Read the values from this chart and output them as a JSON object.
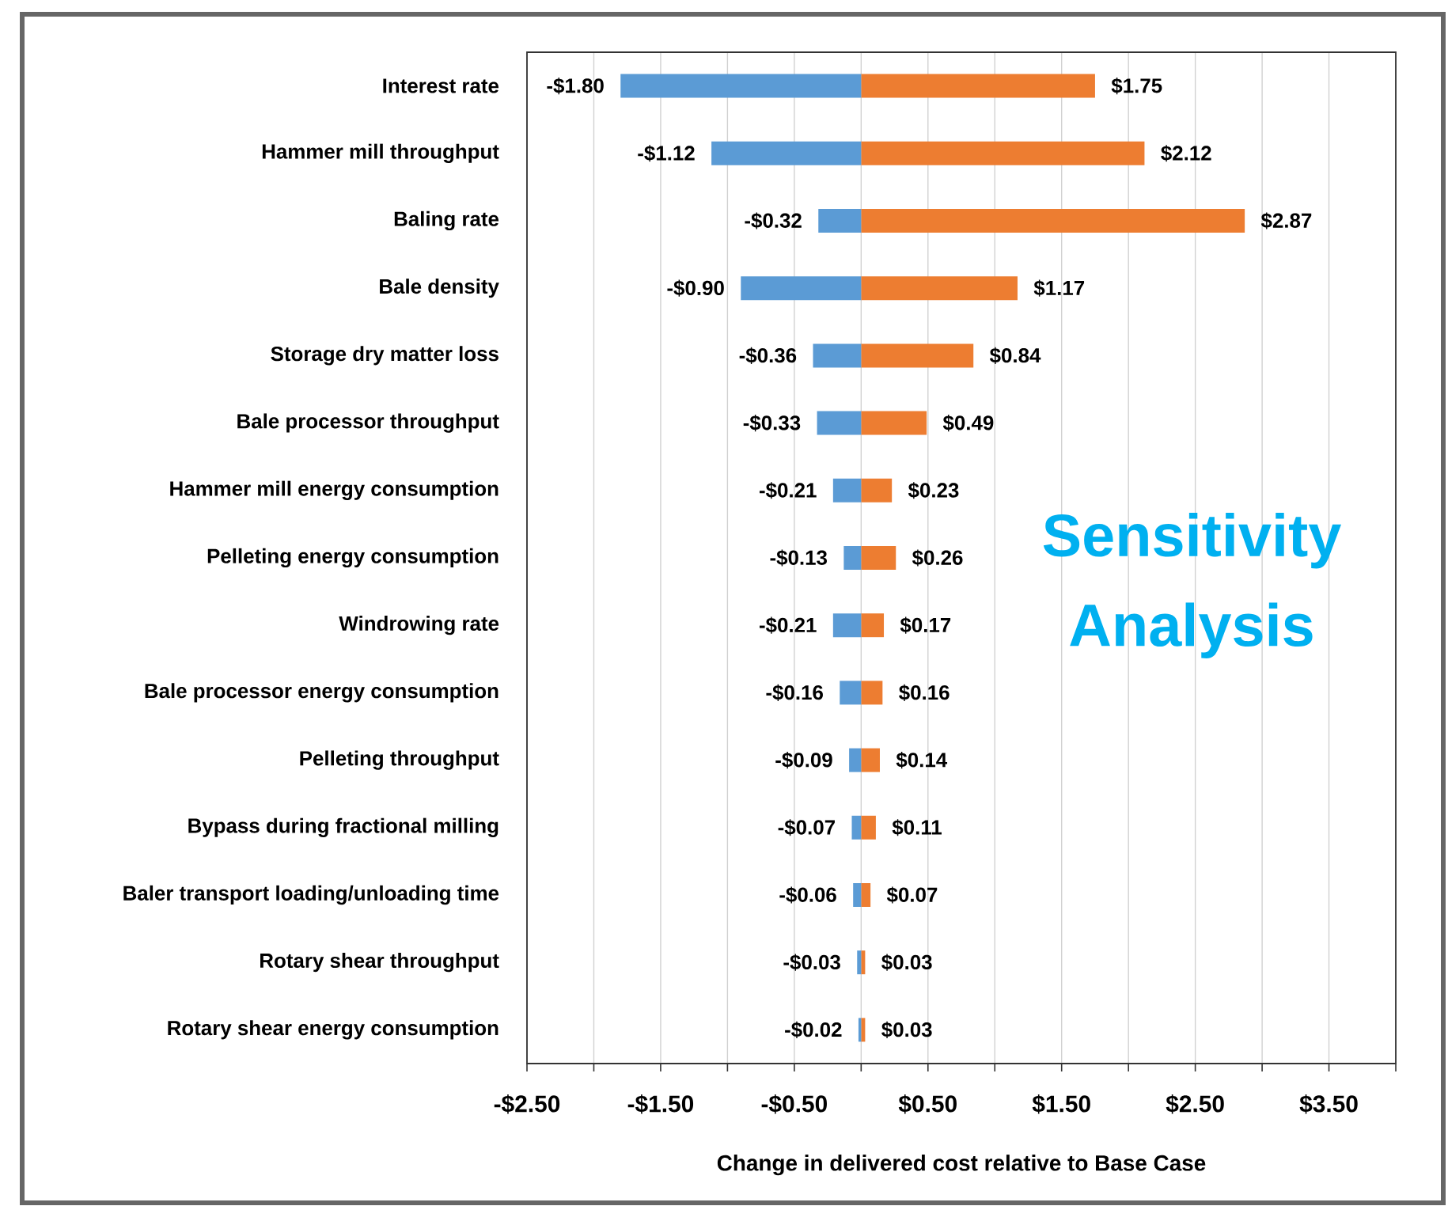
{
  "chart_data": {
    "type": "bar",
    "orientation": "horizontal",
    "stacked": true,
    "title": "Sensitivity Analysis",
    "xlabel": "Change in delivered cost relative to Base Case",
    "categories": [
      "Interest rate",
      "Hammer mill throughput",
      "Baling rate",
      "Bale density",
      "Storage dry matter loss",
      "Bale processor throughput",
      "Hammer mill energy consumption",
      "Pelleting energy consumption",
      "Windrowing rate",
      "Bale processor energy consumption",
      "Pelleting throughput",
      "Bypass during fractional milling",
      "Baler transport loading/unloading time",
      "Rotary shear throughput",
      "Rotary shear  energy consumption"
    ],
    "series": [
      {
        "color": "#5b9bd5",
        "values": [
          -1.8,
          -1.12,
          -0.32,
          -0.9,
          -0.36,
          -0.33,
          -0.21,
          -0.13,
          -0.21,
          -0.16,
          -0.09,
          -0.07,
          -0.06,
          -0.03,
          -0.02
        ],
        "value_labels": [
          "-$1.80",
          "-$1.12",
          "-$0.32",
          "-$0.90",
          "-$0.36",
          "-$0.33",
          "-$0.21",
          "-$0.13",
          "-$0.21",
          "-$0.16",
          "-$0.09",
          "-$0.07",
          "-$0.06",
          "-$0.03",
          "-$0.02"
        ]
      },
      {
        "color": "#ed7d31",
        "values": [
          1.75,
          2.12,
          2.87,
          1.17,
          0.84,
          0.49,
          0.23,
          0.26,
          0.17,
          0.16,
          0.14,
          0.11,
          0.07,
          0.03,
          0.03
        ],
        "value_labels": [
          "$1.75",
          "$2.12",
          "$2.87",
          "$1.17",
          "$0.84",
          "$0.49",
          "$0.23",
          "$0.26",
          "$0.17",
          "$0.16",
          "$0.14",
          "$0.11",
          "$0.07",
          "$0.03",
          "$0.03"
        ]
      }
    ],
    "xlim": [
      -2.5,
      4.0
    ],
    "xticks": [
      {
        "value": -2.5,
        "label": "-$2.50"
      },
      {
        "value": -2.0,
        "label": null
      },
      {
        "value": -1.5,
        "label": "-$1.50"
      },
      {
        "value": -1.0,
        "label": null
      },
      {
        "value": -0.5,
        "label": "-$0.50"
      },
      {
        "value": 0,
        "label": null
      },
      {
        "value": 0.5,
        "label": "$0.50"
      },
      {
        "value": 1.0,
        "label": null
      },
      {
        "value": 1.5,
        "label": "$1.50"
      },
      {
        "value": 2.0,
        "label": null
      },
      {
        "value": 2.5,
        "label": "$2.50"
      },
      {
        "value": 3.0,
        "label": null
      },
      {
        "value": 3.5,
        "label": "$3.50"
      },
      {
        "value": 4.0,
        "label": null
      }
    ],
    "grid": "x"
  }
}
